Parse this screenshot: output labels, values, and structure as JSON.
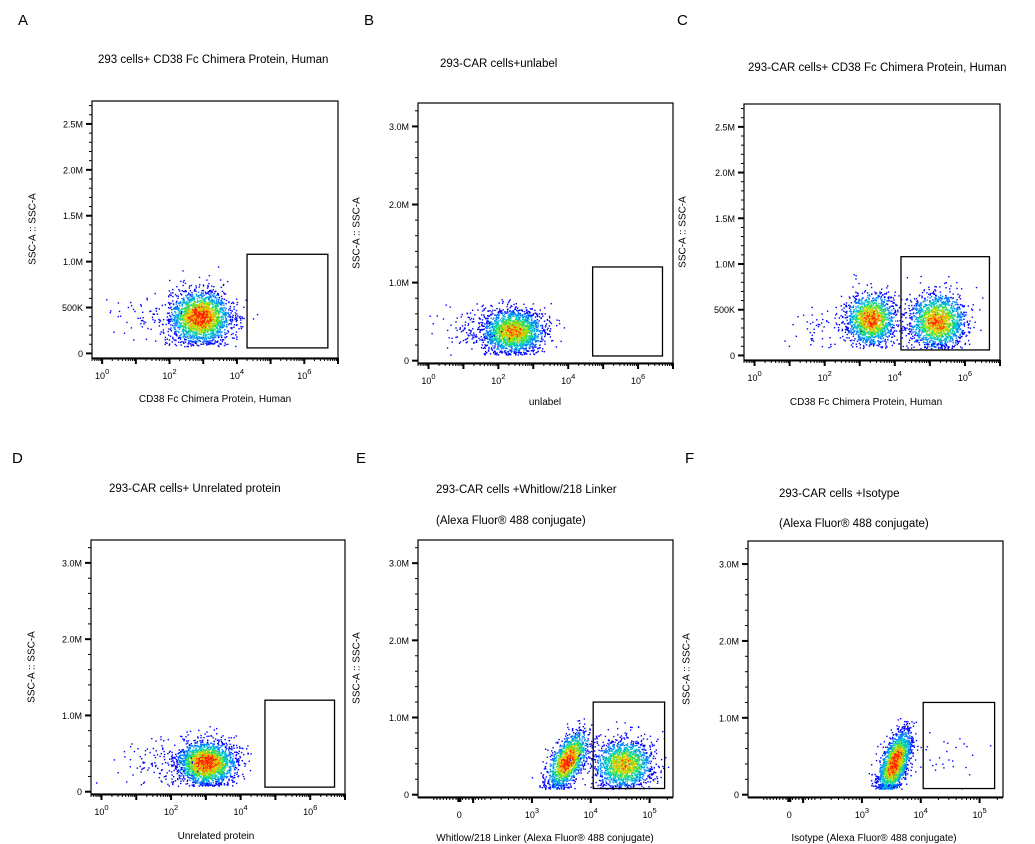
{
  "colors": {
    "density_scale": [
      "#0000ff",
      "#0080ff",
      "#00c8c8",
      "#40e040",
      "#c8e000",
      "#ffb000",
      "#ff2000"
    ],
    "axis": "#000000",
    "gate": "#000000"
  },
  "chart_data": [
    {
      "id": "A",
      "type": "scatter",
      "panel_letter": "A",
      "title_lines": [
        "293 cells+ CD38 Fc Chimera Protein, Human"
      ],
      "xlabel": "CD38 Fc Chimera Protein, Human",
      "ylabel": "SSC-A :: SSC-A",
      "x_scale": "log",
      "xlim": [
        0.5,
        10000000
      ],
      "x_ticks": [
        {
          "v": 1,
          "base": "10",
          "exp": "0"
        },
        {
          "v": 100,
          "base": "10",
          "exp": "2"
        },
        {
          "v": 10000,
          "base": "10",
          "exp": "4"
        },
        {
          "v": 1000000,
          "base": "10",
          "exp": "6"
        }
      ],
      "ylim": [
        -50000,
        2750000
      ],
      "y_ticks": [
        {
          "v": 0,
          "label": "0"
        },
        {
          "v": 500000,
          "label": "500K"
        },
        {
          "v": 1000000,
          "label": "1.0M"
        },
        {
          "v": 1500000,
          "label": "1.5M"
        },
        {
          "v": 2000000,
          "label": "2.0M"
        },
        {
          "v": 2500000,
          "label": "2.5M"
        }
      ],
      "gate": {
        "x": [
          20000,
          5000000
        ],
        "y": [
          60000,
          1080000
        ]
      },
      "populations": [
        {
          "x_center_log10": 2.9,
          "y_center": 400000,
          "x_sd_log10": 0.45,
          "y_sd": 140000,
          "count": 2200,
          "density": 1.0
        },
        {
          "x_center_log10": 1.2,
          "y_center": 400000,
          "x_sd_log10": 0.5,
          "y_sd": 120000,
          "count": 60,
          "density": 0.05
        }
      ]
    },
    {
      "id": "B",
      "type": "scatter",
      "panel_letter": "B",
      "title_lines": [
        "293-CAR cells+unlabel"
      ],
      "xlabel": "unlabel",
      "ylabel": "SSC-A :: SSC-A",
      "x_scale": "log",
      "xlim": [
        0.5,
        10000000
      ],
      "x_ticks": [
        {
          "v": 1,
          "base": "10",
          "exp": "0"
        },
        {
          "v": 100,
          "base": "10",
          "exp": "2"
        },
        {
          "v": 10000,
          "base": "10",
          "exp": "4"
        },
        {
          "v": 1000000,
          "base": "10",
          "exp": "6"
        }
      ],
      "ylim": [
        -30000,
        3300000
      ],
      "y_ticks": [
        {
          "v": 0,
          "label": "0"
        },
        {
          "v": 1000000,
          "label": "1.0M"
        },
        {
          "v": 2000000,
          "label": "2.0M"
        },
        {
          "v": 3000000,
          "label": "3.0M"
        }
      ],
      "gate": {
        "x": [
          50000,
          5000000
        ],
        "y": [
          60000,
          1200000
        ]
      },
      "populations": [
        {
          "x_center_log10": 2.4,
          "y_center": 380000,
          "x_sd_log10": 0.45,
          "y_sd": 140000,
          "count": 2000,
          "density": 0.8
        },
        {
          "x_center_log10": 1.0,
          "y_center": 400000,
          "x_sd_log10": 0.5,
          "y_sd": 150000,
          "count": 70,
          "density": 0.05
        }
      ]
    },
    {
      "id": "C",
      "type": "scatter",
      "panel_letter": "C",
      "title_lines": [
        "293-CAR cells+ CD38 Fc Chimera Protein, Human"
      ],
      "xlabel": "CD38 Fc Chimera Protein, Human",
      "ylabel": "SSC-A :: SSC-A",
      "x_scale": "log",
      "xlim": [
        0.5,
        10000000
      ],
      "x_ticks": [
        {
          "v": 1,
          "base": "10",
          "exp": "0"
        },
        {
          "v": 100,
          "base": "10",
          "exp": "2"
        },
        {
          "v": 10000,
          "base": "10",
          "exp": "4"
        },
        {
          "v": 1000000,
          "base": "10",
          "exp": "6"
        }
      ],
      "ylim": [
        -50000,
        2750000
      ],
      "y_ticks": [
        {
          "v": 0,
          "label": "0"
        },
        {
          "v": 500000,
          "label": "500K"
        },
        {
          "v": 1000000,
          "label": "1.0M"
        },
        {
          "v": 1500000,
          "label": "1.5M"
        },
        {
          "v": 2000000,
          "label": "2.0M"
        },
        {
          "v": 2500000,
          "label": "2.5M"
        }
      ],
      "gate": {
        "x": [
          15000,
          5000000
        ],
        "y": [
          60000,
          1080000
        ]
      },
      "populations": [
        {
          "x_center_log10": 3.3,
          "y_center": 400000,
          "x_sd_log10": 0.35,
          "y_sd": 140000,
          "count": 1500,
          "density": 0.9
        },
        {
          "x_center_log10": 5.2,
          "y_center": 380000,
          "x_sd_log10": 0.4,
          "y_sd": 150000,
          "count": 1600,
          "density": 0.85
        },
        {
          "x_center_log10": 1.8,
          "y_center": 300000,
          "x_sd_log10": 0.5,
          "y_sd": 100000,
          "count": 50,
          "density": 0.05
        }
      ]
    },
    {
      "id": "D",
      "type": "scatter",
      "panel_letter": "D",
      "title_lines": [
        "293-CAR cells+ Unrelated protein"
      ],
      "xlabel": "Unrelated protein",
      "ylabel": "SSC-A :: SSC-A",
      "x_scale": "log",
      "xlim": [
        0.5,
        10000000
      ],
      "x_ticks": [
        {
          "v": 1,
          "base": "10",
          "exp": "0"
        },
        {
          "v": 100,
          "base": "10",
          "exp": "2"
        },
        {
          "v": 10000,
          "base": "10",
          "exp": "4"
        },
        {
          "v": 1000000,
          "base": "10",
          "exp": "6"
        }
      ],
      "ylim": [
        -30000,
        3300000
      ],
      "y_ticks": [
        {
          "v": 0,
          "label": "0"
        },
        {
          "v": 1000000,
          "label": "1.0M"
        },
        {
          "v": 2000000,
          "label": "2.0M"
        },
        {
          "v": 3000000,
          "label": "3.0M"
        }
      ],
      "gate": {
        "x": [
          50000,
          5000000
        ],
        "y": [
          60000,
          1200000
        ]
      },
      "populations": [
        {
          "x_center_log10": 3.0,
          "y_center": 380000,
          "x_sd_log10": 0.42,
          "y_sd": 140000,
          "count": 2200,
          "density": 1.0
        },
        {
          "x_center_log10": 1.5,
          "y_center": 380000,
          "x_sd_log10": 0.55,
          "y_sd": 150000,
          "count": 90,
          "density": 0.05
        }
      ]
    },
    {
      "id": "E",
      "type": "scatter",
      "panel_letter": "E",
      "title_lines": [
        "293-CAR cells +Whitlow/218 Linker",
        "(Alexa Fluor® 488 conjugate)"
      ],
      "xlabel": "Whitlow/218 Linker (Alexa Fluor® 488 conjugate)",
      "ylabel": "SSC-A :: SSC-A",
      "x_scale": "biex",
      "xlim": [
        -300,
        250000
      ],
      "x_ticks": [
        {
          "v": 0,
          "base": "0",
          "exp": ""
        },
        {
          "v": 1000,
          "base": "10",
          "exp": "3"
        },
        {
          "v": 10000,
          "base": "10",
          "exp": "4"
        },
        {
          "v": 100000,
          "base": "10",
          "exp": "5"
        }
      ],
      "ylim": [
        -30000,
        3300000
      ],
      "y_ticks": [
        {
          "v": 0,
          "label": "0"
        },
        {
          "v": 1000000,
          "label": "1.0M"
        },
        {
          "v": 2000000,
          "label": "2.0M"
        },
        {
          "v": 3000000,
          "label": "3.0M"
        }
      ],
      "gate": {
        "x": [
          11000,
          180000
        ],
        "y": [
          80000,
          1200000
        ]
      },
      "populations": [
        {
          "x_center_log10": 3.6,
          "y_center": 450000,
          "x_sd_log10": 0.17,
          "y_sd": 150000,
          "count": 1400,
          "density": 1.0,
          "tilt": 1
        },
        {
          "x_center_log10": 4.55,
          "y_center": 400000,
          "x_sd_log10": 0.25,
          "y_sd": 160000,
          "count": 1500,
          "density": 0.75
        }
      ]
    },
    {
      "id": "F",
      "type": "scatter",
      "panel_letter": "F",
      "title_lines": [
        "293-CAR cells +Isotype",
        "(Alexa Fluor® 488 conjugate)"
      ],
      "xlabel": "Isotype (Alexa Fluor® 488 conjugate)",
      "ylabel": "SSC-A :: SSC-A",
      "x_scale": "biex",
      "xlim": [
        -300,
        250000
      ],
      "x_ticks": [
        {
          "v": 0,
          "base": "0",
          "exp": ""
        },
        {
          "v": 1000,
          "base": "10",
          "exp": "3"
        },
        {
          "v": 10000,
          "base": "10",
          "exp": "4"
        },
        {
          "v": 100000,
          "base": "10",
          "exp": "5"
        }
      ],
      "ylim": [
        -30000,
        3300000
      ],
      "y_ticks": [
        {
          "v": 0,
          "label": "0"
        },
        {
          "v": 1000000,
          "label": "1.0M"
        },
        {
          "v": 2000000,
          "label": "2.0M"
        },
        {
          "v": 3000000,
          "label": "3.0M"
        }
      ],
      "gate": {
        "x": [
          11000,
          180000
        ],
        "y": [
          80000,
          1200000
        ]
      },
      "populations": [
        {
          "x_center_log10": 3.55,
          "y_center": 420000,
          "x_sd_log10": 0.14,
          "y_sd": 170000,
          "count": 1800,
          "density": 1.0,
          "tilt": 1
        },
        {
          "x_center_log10": 4.4,
          "y_center": 500000,
          "x_sd_log10": 0.3,
          "y_sd": 200000,
          "count": 25,
          "density": 0.03
        }
      ]
    }
  ]
}
